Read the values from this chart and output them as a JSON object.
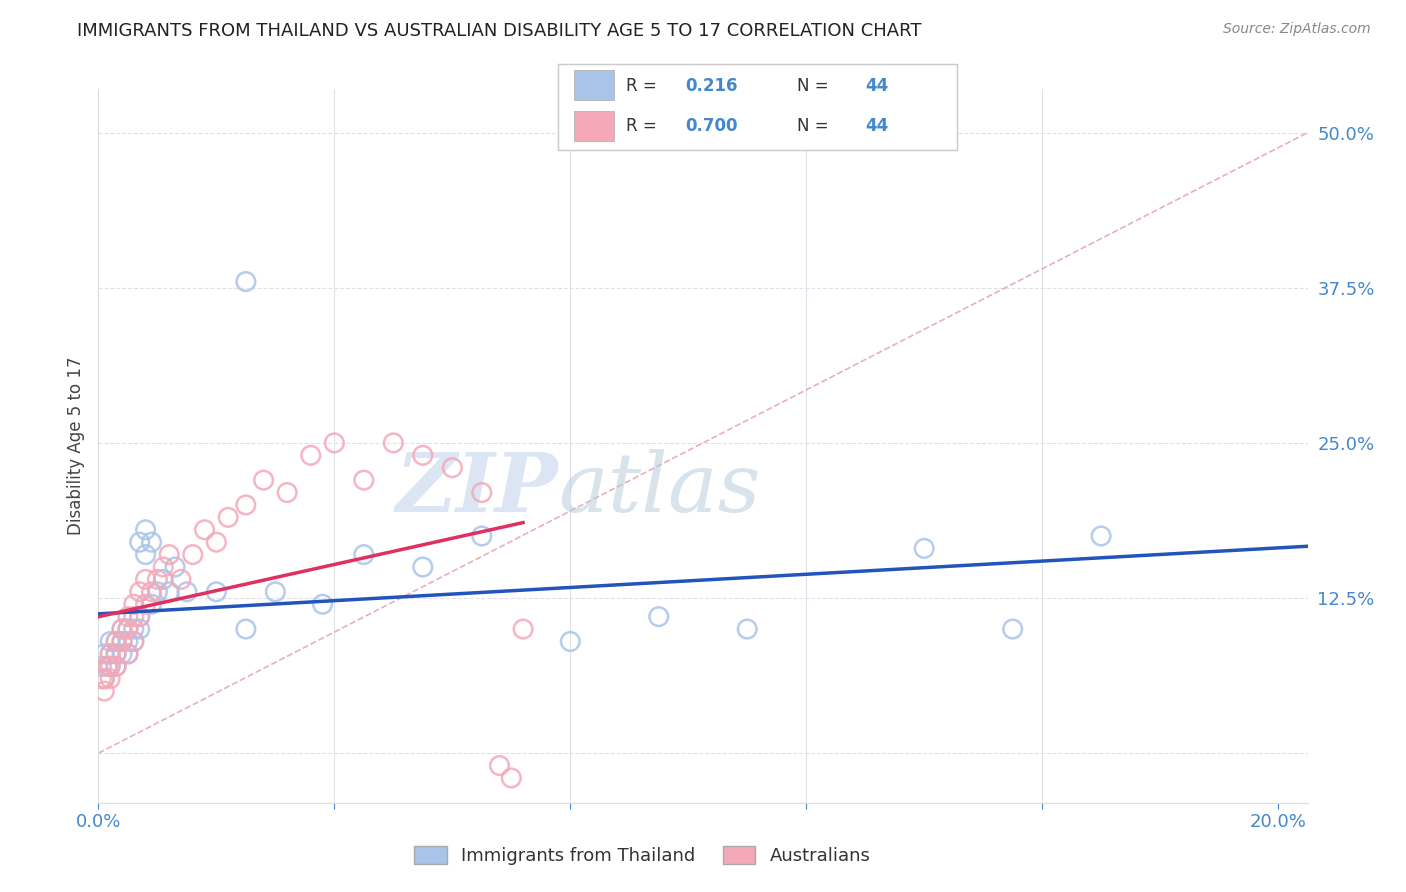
{
  "title": "IMMIGRANTS FROM THAILAND VS AUSTRALIAN DISABILITY AGE 5 TO 17 CORRELATION CHART",
  "source": "Source: ZipAtlas.com",
  "ylabel": "Disability Age 5 to 17",
  "xlim": [
    0.0,
    0.205
  ],
  "ylim": [
    -0.04,
    0.535
  ],
  "blue_color": "#a8c4e8",
  "pink_color": "#f4a8b8",
  "blue_line_color": "#2255bb",
  "pink_line_color": "#e03060",
  "diag_line_color": "#e8b0b8",
  "background_color": "#ffffff",
  "watermark_zip": "ZIP",
  "watermark_atlas": "atlas",
  "grid_color": "#e0e0e8",
  "legend_label1": "Immigrants from Thailand",
  "legend_label2": "Australians",
  "r1": "0.216",
  "r2": "0.700",
  "n": "44",
  "tick_color": "#4488cc",
  "text_color": "#333333",
  "title_fontsize": 13,
  "tick_fontsize": 13,
  "legend_fontsize": 13,
  "thailand_x": [
    0.0005,
    0.001,
    0.001,
    0.0015,
    0.002,
    0.002,
    0.002,
    0.003,
    0.003,
    0.003,
    0.004,
    0.004,
    0.004,
    0.005,
    0.005,
    0.005,
    0.006,
    0.006,
    0.007,
    0.007,
    0.007,
    0.008,
    0.008,
    0.009,
    0.009,
    0.01,
    0.011,
    0.012,
    0.013,
    0.015,
    0.02,
    0.025,
    0.03,
    0.038,
    0.045,
    0.055,
    0.065,
    0.08,
    0.095,
    0.11,
    0.14,
    0.155,
    0.17,
    0.025
  ],
  "thailand_y": [
    0.07,
    0.06,
    0.08,
    0.07,
    0.07,
    0.08,
    0.09,
    0.07,
    0.08,
    0.09,
    0.08,
    0.09,
    0.1,
    0.08,
    0.09,
    0.1,
    0.1,
    0.09,
    0.1,
    0.11,
    0.17,
    0.18,
    0.16,
    0.17,
    0.12,
    0.13,
    0.14,
    0.13,
    0.15,
    0.13,
    0.13,
    0.1,
    0.13,
    0.12,
    0.16,
    0.15,
    0.175,
    0.09,
    0.11,
    0.1,
    0.165,
    0.1,
    0.175,
    0.38
  ],
  "australian_x": [
    0.0005,
    0.001,
    0.001,
    0.0015,
    0.002,
    0.002,
    0.002,
    0.003,
    0.003,
    0.003,
    0.004,
    0.004,
    0.005,
    0.005,
    0.005,
    0.006,
    0.006,
    0.006,
    0.007,
    0.007,
    0.008,
    0.008,
    0.009,
    0.01,
    0.011,
    0.012,
    0.014,
    0.016,
    0.018,
    0.02,
    0.022,
    0.025,
    0.028,
    0.032,
    0.036,
    0.04,
    0.045,
    0.05,
    0.055,
    0.06,
    0.065,
    0.068,
    0.07,
    0.072
  ],
  "australian_y": [
    0.06,
    0.05,
    0.06,
    0.07,
    0.06,
    0.07,
    0.08,
    0.07,
    0.08,
    0.09,
    0.09,
    0.1,
    0.08,
    0.1,
    0.11,
    0.09,
    0.11,
    0.12,
    0.11,
    0.13,
    0.12,
    0.14,
    0.13,
    0.14,
    0.15,
    0.16,
    0.14,
    0.16,
    0.18,
    0.17,
    0.19,
    0.2,
    0.22,
    0.21,
    0.24,
    0.25,
    0.22,
    0.25,
    0.24,
    0.23,
    0.21,
    -0.01,
    -0.02,
    0.1
  ]
}
